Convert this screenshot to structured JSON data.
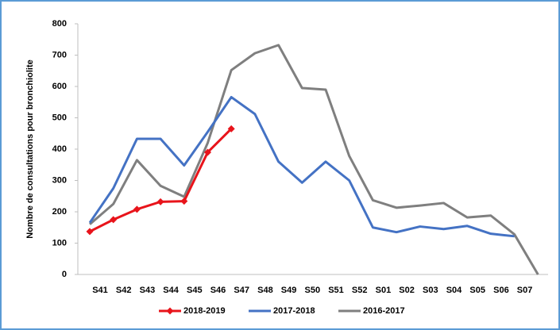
{
  "chart_data": {
    "type": "line",
    "y_label": "Nombre de consultations pour bronchiolite",
    "categories": [
      "S41",
      "S42",
      "S43",
      "S44",
      "S45",
      "S46",
      "S47",
      "S48",
      "S49",
      "S50",
      "S51",
      "S52",
      "S01",
      "S02",
      "S03",
      "S04",
      "S05",
      "S06",
      "S07",
      null
    ],
    "series": [
      {
        "name": "2018-2019",
        "color": "#e8141b",
        "marker": "diamond",
        "values": [
          137,
          175,
          208,
          232,
          234,
          390,
          465,
          null,
          null,
          null,
          null,
          null,
          null,
          null,
          null,
          null,
          null,
          null,
          null,
          null
        ]
      },
      {
        "name": "2017-2018",
        "color": "#4472c4",
        "values": [
          165,
          275,
          433,
          433,
          348,
          455,
          566,
          512,
          360,
          293,
          360,
          300,
          150,
          135,
          153,
          145,
          155,
          130,
          122,
          null
        ]
      },
      {
        "name": "2016-2017",
        "color": "#7f7f7f",
        "values": [
          160,
          225,
          365,
          283,
          248,
          420,
          652,
          706,
          732,
          595,
          590,
          378,
          237,
          213,
          220,
          228,
          182,
          188,
          128,
          0
        ]
      }
    ],
    "ylim": [
      0,
      800
    ],
    "yticks": [
      0,
      100,
      200,
      300,
      400,
      500,
      600,
      700,
      800
    ],
    "grid": false,
    "legend": "bottom"
  }
}
